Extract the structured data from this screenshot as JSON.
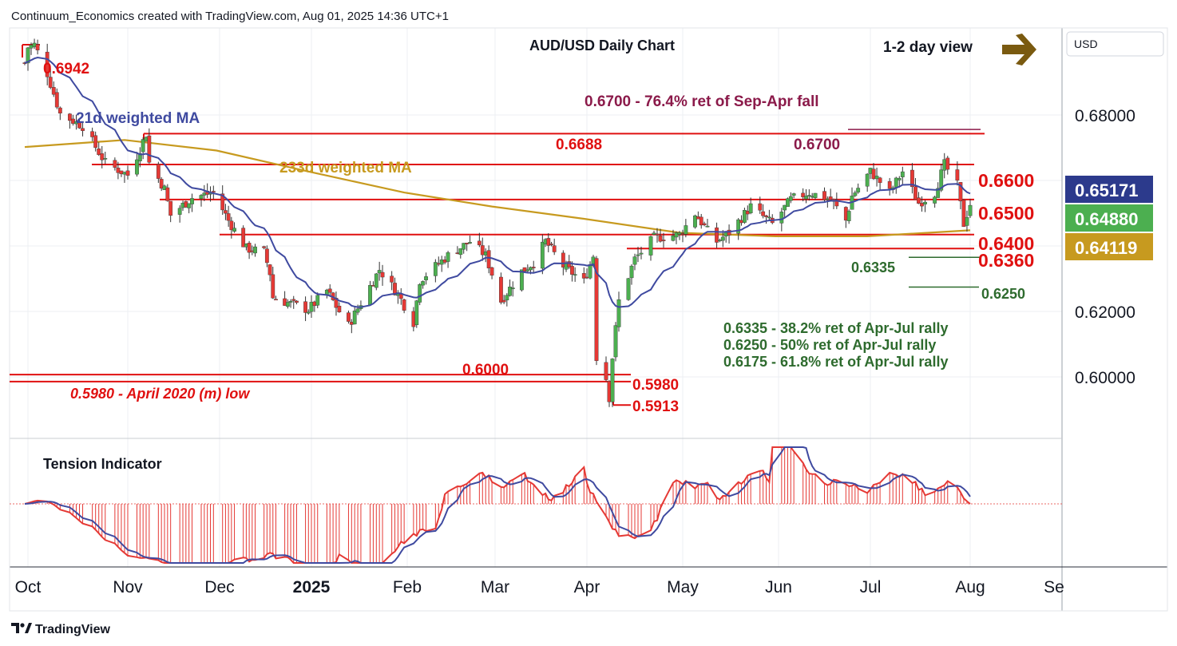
{
  "header": {
    "attribution": "Continuum_Economics created with TradingView.com, Aug 01, 2025 14:36 UTC+1"
  },
  "footer": {
    "brand": "TradingView"
  },
  "currency_button": "USD",
  "colors": {
    "up_candle": "#4caf50",
    "down_candle": "#e53935",
    "wick": "#333333",
    "ma21": "#3f4aa0",
    "ma233": "#c79a1f",
    "level_red": "#e01010",
    "ret_green": "#2e6b2e",
    "fib_purple": "#8b1a4a",
    "arrow": "#7a5a10",
    "badge_ma21": "#2c3a8c",
    "badge_close": "#4caf50",
    "badge_ma233": "#c79a1f",
    "indicator_line": "#3f4aa0",
    "indicator_red": "#e53935"
  },
  "chart_data": {
    "type": "candlestick",
    "title": "AUD/USD Daily Chart",
    "view_note": "1-2 day view",
    "view_icon": "arrow-right-icon",
    "currency": "USD",
    "y_ticks": [
      "0.68000",
      "0.62000",
      "0.60000"
    ],
    "ylim": [
      0.582,
      0.699
    ],
    "x_ticks": [
      "Oct",
      "Nov",
      "Dec",
      "2025",
      "Feb",
      "Mar",
      "Apr",
      "May",
      "Jun",
      "Jul",
      "Aug",
      "Se"
    ],
    "legend_labels": {
      "ma21": "21d weighted MA",
      "ma233": "233d weighted MA"
    },
    "badges": {
      "ma21": "0.65171",
      "close": "0.64880",
      "ma233": "0.64119"
    },
    "levels": [
      {
        "label": "0.6942",
        "value": 0.6942
      },
      {
        "label": "0.6688",
        "value": 0.6688
      },
      {
        "label": "0.6700",
        "value": 0.67
      },
      {
        "label": "0.6600",
        "value": 0.66
      },
      {
        "label": "0.6500",
        "value": 0.65
      },
      {
        "label": "0.6400",
        "value": 0.64
      },
      {
        "label": "0.6360",
        "value": 0.636
      },
      {
        "label": "0.6335",
        "value": 0.6335
      },
      {
        "label": "0.6250",
        "value": 0.625
      },
      {
        "label": "0.6000",
        "value": 0.6
      },
      {
        "label": "0.5980",
        "value": 0.598
      },
      {
        "label": "0.5913",
        "value": 0.5913
      }
    ],
    "annotations": {
      "fib_note": "0.6700 - 76.4% ret of Sep-Apr fall",
      "ret_1": "0.6335 - 38.2% ret of Apr-Jul rally",
      "ret_2": "0.6250 - 50% ret of Apr-Jul rally",
      "ret_3": "0.6175 - 61.8% ret of Apr-Jul rally",
      "low_note": "0.5980 - April 2020 (m) low"
    },
    "indicator": {
      "title": "Tension Indicator"
    },
    "price_path": [
      [
        "2024-09-30",
        0.689
      ],
      [
        "2024-10-01",
        0.6935
      ],
      [
        "2024-10-03",
        0.6942
      ],
      [
        "2024-10-07",
        0.686
      ],
      [
        "2024-10-11",
        0.6745
      ],
      [
        "2024-10-18",
        0.671
      ],
      [
        "2024-10-25",
        0.6605
      ],
      [
        "2024-11-01",
        0.657
      ],
      [
        "2024-11-04",
        0.6625
      ],
      [
        "2024-11-07",
        0.6688
      ],
      [
        "2024-11-08",
        0.6605
      ],
      [
        "2024-11-13",
        0.653
      ],
      [
        "2024-11-15",
        0.6455
      ],
      [
        "2024-11-22",
        0.6505
      ],
      [
        "2024-11-29",
        0.652
      ],
      [
        "2024-12-04",
        0.644
      ],
      [
        "2024-12-10",
        0.636
      ],
      [
        "2024-12-16",
        0.635
      ],
      [
        "2024-12-18",
        0.629
      ],
      [
        "2024-12-19",
        0.622
      ],
      [
        "2024-12-31",
        0.6185
      ],
      [
        "2025-01-06",
        0.624
      ],
      [
        "2025-01-10",
        0.618
      ],
      [
        "2025-01-13",
        0.614
      ],
      [
        "2025-01-17",
        0.6205
      ],
      [
        "2025-01-23",
        0.63
      ],
      [
        "2025-01-29",
        0.623
      ],
      [
        "2025-02-03",
        0.615
      ],
      [
        "2025-02-05",
        0.627
      ],
      [
        "2025-02-14",
        0.634
      ],
      [
        "2025-02-21",
        0.638
      ],
      [
        "2025-02-26",
        0.634
      ],
      [
        "2025-03-03",
        0.621
      ],
      [
        "2025-03-10",
        0.6295
      ],
      [
        "2025-03-14",
        0.632
      ],
      [
        "2025-03-18",
        0.638
      ],
      [
        "2025-03-24",
        0.631
      ],
      [
        "2025-03-31",
        0.6265
      ],
      [
        "2025-04-03",
        0.634
      ],
      [
        "2025-04-04",
        0.605
      ],
      [
        "2025-04-07",
        0.599
      ],
      [
        "2025-04-08",
        0.5935
      ],
      [
        "2025-04-09",
        0.605
      ],
      [
        "2025-04-11",
        0.621
      ],
      [
        "2025-04-16",
        0.633
      ],
      [
        "2025-04-22",
        0.639
      ],
      [
        "2025-04-30",
        0.64
      ],
      [
        "2025-05-05",
        0.646
      ],
      [
        "2025-05-09",
        0.641
      ],
      [
        "2025-05-12",
        0.638
      ],
      [
        "2025-05-16",
        0.6405
      ],
      [
        "2025-05-23",
        0.648
      ],
      [
        "2025-05-30",
        0.643
      ],
      [
        "2025-06-05",
        0.65
      ],
      [
        "2025-06-11",
        0.652
      ],
      [
        "2025-06-18",
        0.65
      ],
      [
        "2025-06-23",
        0.644
      ],
      [
        "2025-06-25",
        0.651
      ],
      [
        "2025-07-01",
        0.658
      ],
      [
        "2025-07-07",
        0.652
      ],
      [
        "2025-07-11",
        0.658
      ],
      [
        "2025-07-16",
        0.649
      ],
      [
        "2025-07-21",
        0.652
      ],
      [
        "2025-07-24",
        0.66
      ],
      [
        "2025-07-28",
        0.654
      ],
      [
        "2025-07-30",
        0.643
      ],
      [
        "2025-08-01",
        0.6488
      ]
    ]
  }
}
